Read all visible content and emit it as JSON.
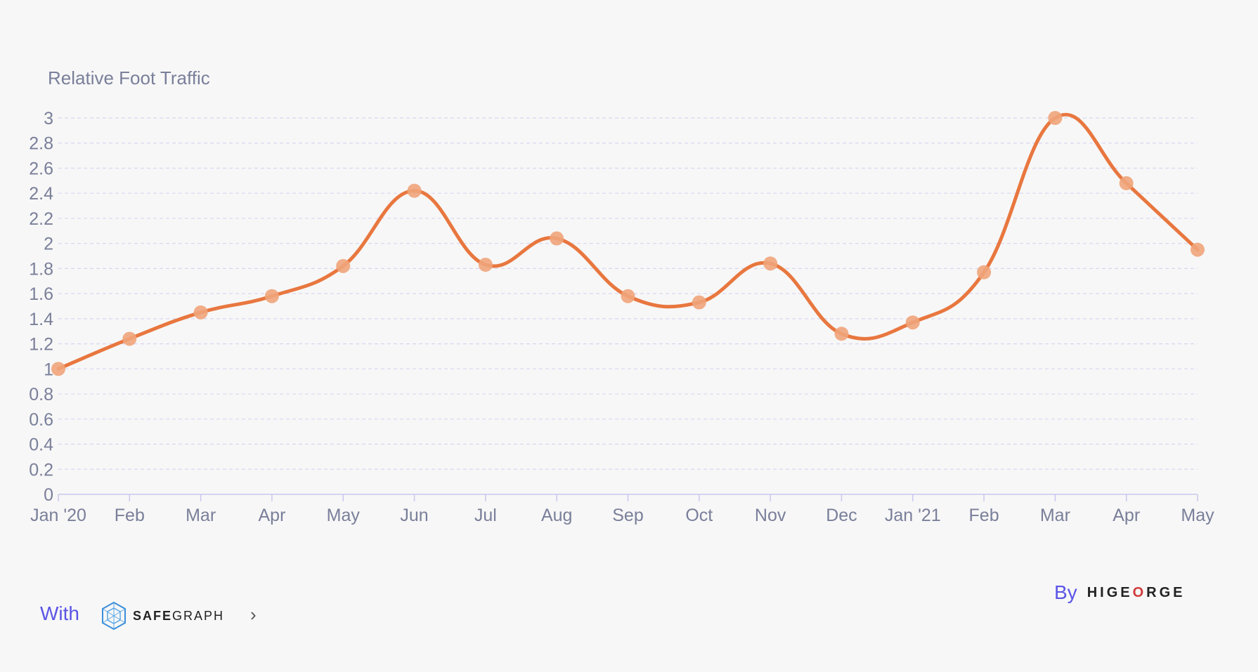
{
  "chart_data": {
    "type": "line",
    "title": "Relative Foot Traffic",
    "categories": [
      "Jan '20",
      "Feb",
      "Mar",
      "Apr",
      "May",
      "Jun",
      "Jul",
      "Aug",
      "Sep",
      "Oct",
      "Nov",
      "Dec",
      "Jan '21",
      "Feb",
      "Mar",
      "Apr",
      "May"
    ],
    "values": [
      1.0,
      1.24,
      1.45,
      1.58,
      1.82,
      2.42,
      1.83,
      2.04,
      1.58,
      1.53,
      1.84,
      1.28,
      1.37,
      1.77,
      3.0,
      2.48,
      1.95
    ],
    "ylim": [
      0,
      3
    ],
    "yticks": [
      "0",
      "0.2",
      "0.4",
      "0.6",
      "0.8",
      "1",
      "1.2",
      "1.4",
      "1.6",
      "1.8",
      "2",
      "2.2",
      "2.4",
      "2.6",
      "2.8",
      "3"
    ],
    "grid": true,
    "line_color": "#e8773f",
    "marker_color": "#efa47a",
    "grid_color": "#d8d6f2",
    "axis_text_color": "#7a7f9a"
  },
  "footer": {
    "with_label": "With",
    "safegraph_safe": "SAFE",
    "safegraph_graph": "GRAPH",
    "by_label": "By",
    "higeorge_pre": "HIGE",
    "higeorge_o": "O",
    "higeorge_post": "RGE"
  }
}
